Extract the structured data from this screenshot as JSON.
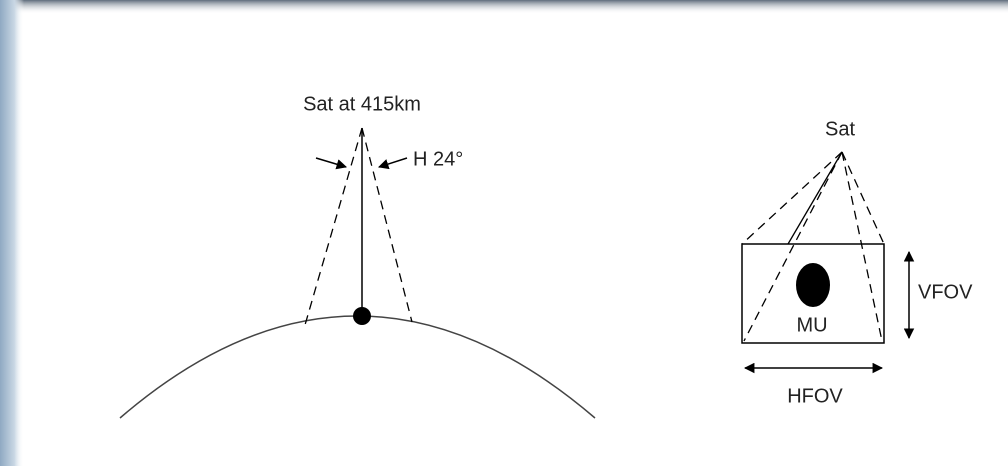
{
  "satellite_view": {
    "satellite_label": "Sat at 415km",
    "angle_label": "H 24°"
  },
  "fov_view": {
    "satellite_label": "Sat",
    "target_label": "MU",
    "vertical_label": "VFOV",
    "horizontal_label": "HFOV"
  }
}
